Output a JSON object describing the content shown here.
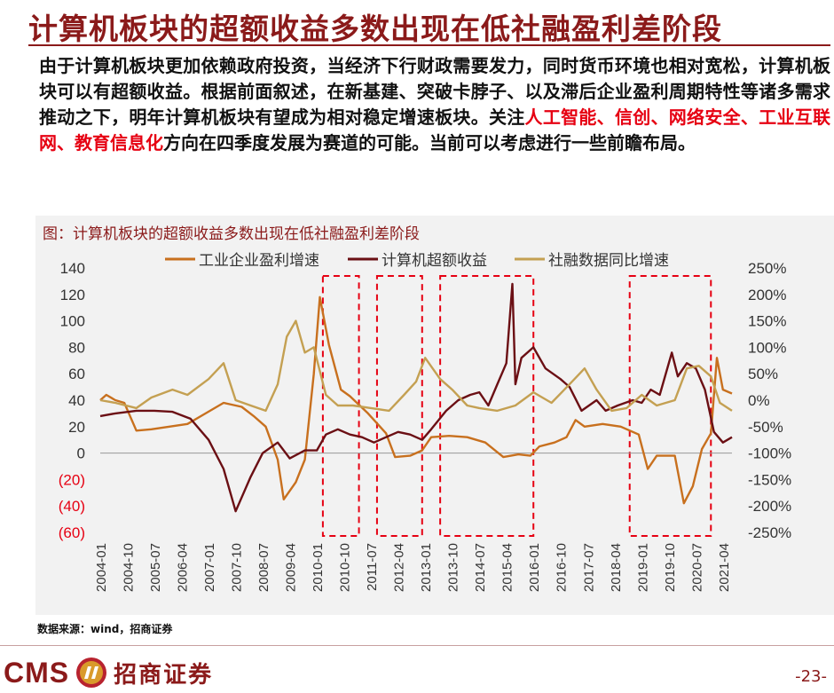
{
  "slide": {
    "title": "计算机板块的超额收益多数出现在低社融盈利差阶段",
    "intro_part1": "由于计算机板块更加依赖政府投资，当经济下行财政需要发力，同时货币环境也相对宽松，计算机板块可以有超额收益。根据前面叙述，在新基建、突破卡脖子、以及滞后企业盈利周期特性等诸多需求推动之下，明年计算机板块有望成为相对稳定增速板块。关注",
    "intro_highlight": "人工智能、信创、网络安全、工业互联网、教育信息化",
    "intro_part2": "方向在四季度发展为赛道的可能。当前可以考虑进行一些前瞻布局。",
    "caption": "图：计算机板块的超额收益多数出现在低社融盈利差阶段",
    "source": "数据来源：wind，招商证券",
    "page_number": "-23-",
    "logo_text": "CMS",
    "logo_cn": "招商证券"
  },
  "chart_data": {
    "type": "line",
    "x_start": "2004-01",
    "x_end": "2021-07",
    "x_ticks": [
      "2004-01",
      "2004-10",
      "2005-07",
      "2006-04",
      "2007-01",
      "2007-10",
      "2008-07",
      "2009-04",
      "2010-01",
      "2010-10",
      "2011-07",
      "2012-04",
      "2013-01",
      "2013-10",
      "2014-07",
      "2015-04",
      "2016-01",
      "2016-10",
      "2017-07",
      "2018-04",
      "2019-01",
      "2019-10",
      "2020-07",
      "2021-04"
    ],
    "y_left": {
      "min": -60,
      "max": 140,
      "ticks": [
        140,
        120,
        100,
        80,
        60,
        40,
        20,
        0,
        -20,
        -40,
        -60
      ],
      "tick_labels": [
        "140",
        "120",
        "100",
        "80",
        "60",
        "40",
        "20",
        "0",
        "(20)",
        "(40)",
        "(60)"
      ],
      "negative_color": "#e60012"
    },
    "y_right": {
      "min": -250,
      "max": 250,
      "ticks": [
        250,
        200,
        150,
        100,
        50,
        0,
        -50,
        -100,
        -150,
        -200,
        -250
      ],
      "tick_labels": [
        "250%",
        "200%",
        "150%",
        "100%",
        "50%",
        "0%",
        "-50%",
        "-100%",
        "-150%",
        "-200%",
        "-250%"
      ]
    },
    "highlight_ranges": [
      [
        "2010-03",
        "2011-03"
      ],
      [
        "2011-09",
        "2012-12"
      ],
      [
        "2013-06",
        "2016-01"
      ],
      [
        "2018-09",
        "2020-12"
      ]
    ],
    "series": [
      {
        "name": "工业企业盈利增速",
        "axis": "left",
        "color": "#c8701e",
        "points": [
          [
            "2004-01",
            40
          ],
          [
            "2004-03",
            44
          ],
          [
            "2004-06",
            40
          ],
          [
            "2004-09",
            38
          ],
          [
            "2005-01",
            17
          ],
          [
            "2005-06",
            18
          ],
          [
            "2005-12",
            20
          ],
          [
            "2006-06",
            22
          ],
          [
            "2006-12",
            30
          ],
          [
            "2007-06",
            38
          ],
          [
            "2007-12",
            35
          ],
          [
            "2008-04",
            28
          ],
          [
            "2008-08",
            20
          ],
          [
            "2008-12",
            -5
          ],
          [
            "2009-02",
            -35
          ],
          [
            "2009-06",
            -22
          ],
          [
            "2009-09",
            -5
          ],
          [
            "2009-12",
            60
          ],
          [
            "2010-02",
            118
          ],
          [
            "2010-05",
            82
          ],
          [
            "2010-09",
            48
          ],
          [
            "2010-12",
            43
          ],
          [
            "2011-06",
            30
          ],
          [
            "2011-12",
            15
          ],
          [
            "2012-03",
            -3
          ],
          [
            "2012-08",
            -2
          ],
          [
            "2012-12",
            2
          ],
          [
            "2013-03",
            12
          ],
          [
            "2013-09",
            13
          ],
          [
            "2014-03",
            12
          ],
          [
            "2014-09",
            8
          ],
          [
            "2015-03",
            -3
          ],
          [
            "2015-08",
            -1
          ],
          [
            "2015-12",
            -2
          ],
          [
            "2016-03",
            5
          ],
          [
            "2016-08",
            8
          ],
          [
            "2016-12",
            12
          ],
          [
            "2017-03",
            25
          ],
          [
            "2017-06",
            20
          ],
          [
            "2017-12",
            22
          ],
          [
            "2018-06",
            20
          ],
          [
            "2018-12",
            14
          ],
          [
            "2019-03",
            -12
          ],
          [
            "2019-06",
            -2
          ],
          [
            "2019-12",
            -2
          ],
          [
            "2020-03",
            -38
          ],
          [
            "2020-06",
            -25
          ],
          [
            "2020-09",
            3
          ],
          [
            "2020-12",
            15
          ],
          [
            "2021-02",
            72
          ],
          [
            "2021-04",
            48
          ],
          [
            "2021-07",
            45
          ]
        ]
      },
      {
        "name": "计算机超额收益",
        "axis": "right",
        "color": "#6b0f14",
        "points": [
          [
            "2004-01",
            -30
          ],
          [
            "2004-06",
            -25
          ],
          [
            "2005-01",
            -20
          ],
          [
            "2005-07",
            -20
          ],
          [
            "2006-01",
            -22
          ],
          [
            "2006-07",
            -35
          ],
          [
            "2007-01",
            -75
          ],
          [
            "2007-06",
            -130
          ],
          [
            "2007-10",
            -210
          ],
          [
            "2008-03",
            -145
          ],
          [
            "2008-07",
            -100
          ],
          [
            "2008-12",
            -80
          ],
          [
            "2009-04",
            -110
          ],
          [
            "2009-09",
            -95
          ],
          [
            "2010-01",
            -95
          ],
          [
            "2010-04",
            -65
          ],
          [
            "2010-08",
            -55
          ],
          [
            "2010-12",
            -65
          ],
          [
            "2011-04",
            -70
          ],
          [
            "2011-08",
            -80
          ],
          [
            "2011-12",
            -70
          ],
          [
            "2012-04",
            -60
          ],
          [
            "2012-08",
            -65
          ],
          [
            "2012-12",
            -75
          ],
          [
            "2013-03",
            -55
          ],
          [
            "2013-08",
            -20
          ],
          [
            "2013-12",
            0
          ],
          [
            "2014-04",
            10
          ],
          [
            "2014-07",
            15
          ],
          [
            "2014-10",
            -10
          ],
          [
            "2015-01",
            30
          ],
          [
            "2015-04",
            70
          ],
          [
            "2015-06",
            220
          ],
          [
            "2015-07",
            30
          ],
          [
            "2015-09",
            80
          ],
          [
            "2016-01",
            100
          ],
          [
            "2016-05",
            60
          ],
          [
            "2016-10",
            40
          ],
          [
            "2017-01",
            25
          ],
          [
            "2017-05",
            -20
          ],
          [
            "2017-10",
            0
          ],
          [
            "2018-01",
            -20
          ],
          [
            "2018-05",
            -10
          ],
          [
            "2018-10",
            0
          ],
          [
            "2019-01",
            -5
          ],
          [
            "2019-04",
            20
          ],
          [
            "2019-07",
            10
          ],
          [
            "2019-11",
            90
          ],
          [
            "2020-01",
            45
          ],
          [
            "2020-04",
            70
          ],
          [
            "2020-07",
            60
          ],
          [
            "2020-10",
            20
          ],
          [
            "2021-01",
            -60
          ],
          [
            "2021-04",
            -80
          ],
          [
            "2021-07",
            -70
          ]
        ]
      },
      {
        "name": "社融数据同比增速",
        "axis": "right",
        "color": "#c4a052",
        "points": [
          [
            "2004-01",
            0
          ],
          [
            "2004-06",
            -5
          ],
          [
            "2005-01",
            -15
          ],
          [
            "2005-06",
            5
          ],
          [
            "2006-01",
            20
          ],
          [
            "2006-06",
            10
          ],
          [
            "2007-01",
            40
          ],
          [
            "2007-06",
            70
          ],
          [
            "2007-10",
            0
          ],
          [
            "2008-03",
            -10
          ],
          [
            "2008-08",
            -20
          ],
          [
            "2008-12",
            30
          ],
          [
            "2009-03",
            120
          ],
          [
            "2009-06",
            150
          ],
          [
            "2009-09",
            90
          ],
          [
            "2009-12",
            100
          ],
          [
            "2010-04",
            10
          ],
          [
            "2010-08",
            -10
          ],
          [
            "2011-01",
            -10
          ],
          [
            "2011-07",
            -15
          ],
          [
            "2012-01",
            -20
          ],
          [
            "2012-06",
            10
          ],
          [
            "2012-10",
            35
          ],
          [
            "2013-01",
            80
          ],
          [
            "2013-06",
            40
          ],
          [
            "2013-10",
            20
          ],
          [
            "2014-03",
            -10
          ],
          [
            "2014-07",
            -15
          ],
          [
            "2015-01",
            -20
          ],
          [
            "2015-07",
            -10
          ],
          [
            "2016-01",
            15
          ],
          [
            "2016-07",
            -5
          ],
          [
            "2017-01",
            30
          ],
          [
            "2017-06",
            60
          ],
          [
            "2017-10",
            20
          ],
          [
            "2018-03",
            -20
          ],
          [
            "2018-08",
            -15
          ],
          [
            "2019-01",
            10
          ],
          [
            "2019-06",
            -10
          ],
          [
            "2019-12",
            0
          ],
          [
            "2020-04",
            60
          ],
          [
            "2020-08",
            65
          ],
          [
            "2020-12",
            45
          ],
          [
            "2021-03",
            -5
          ],
          [
            "2021-07",
            -20
          ]
        ]
      }
    ]
  }
}
